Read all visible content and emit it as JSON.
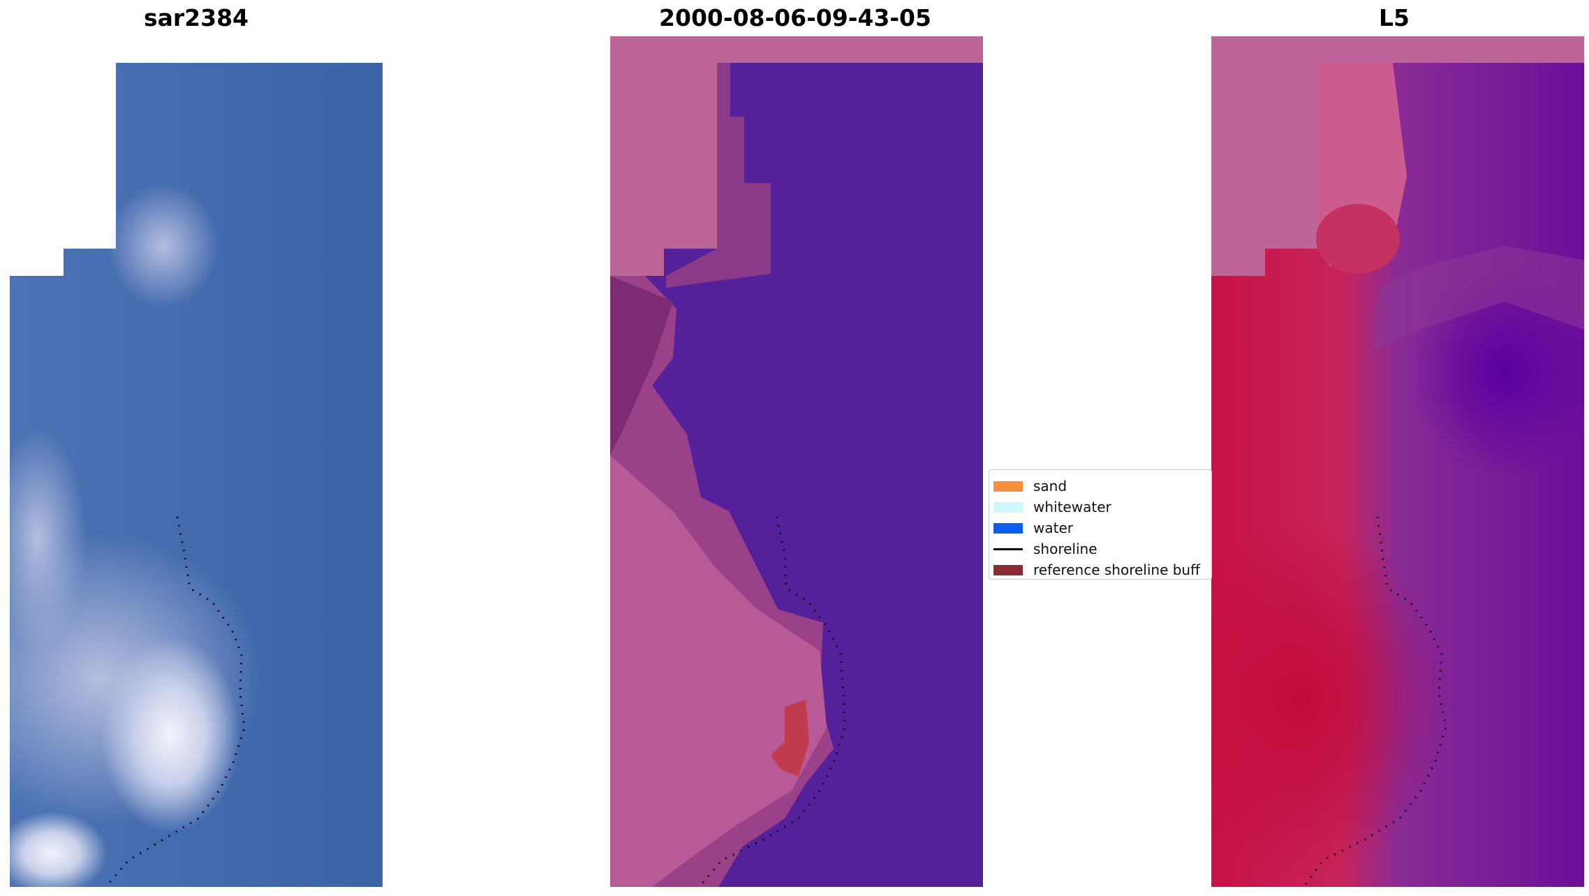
{
  "panels": [
    {
      "title": "sar2384",
      "kind": "satellite-rgb"
    },
    {
      "title": "2000-08-06-09-43-05",
      "kind": "classified-overlay"
    },
    {
      "title": "L5",
      "kind": "index-map"
    }
  ],
  "legend": {
    "items": [
      {
        "label": "sand",
        "color": "#f98e3c"
      },
      {
        "label": "whitewater",
        "color": "#cdf9ff"
      },
      {
        "label": "water",
        "color": "#0a5ff0"
      },
      {
        "label": "shoreline",
        "color": "#000000"
      },
      {
        "label": "reference shoreline buff",
        "color": "#8b2c34"
      }
    ]
  }
}
